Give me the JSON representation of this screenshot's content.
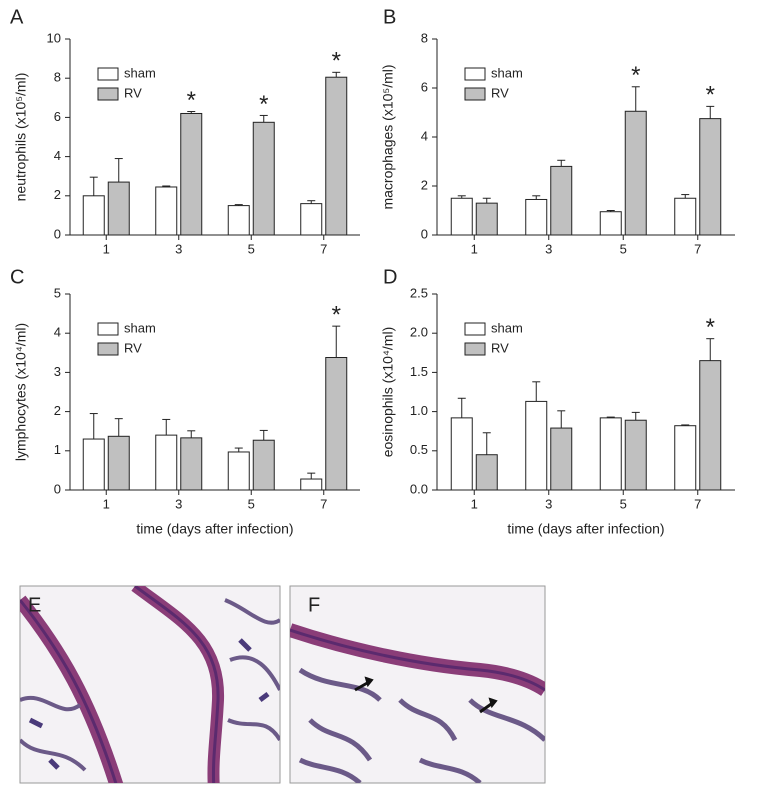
{
  "chart_data": [
    {
      "type": "bar",
      "panel": "A",
      "ylabel": "neutrophils (x10⁵/ml)",
      "categories": [
        "1",
        "3",
        "5",
        "7"
      ],
      "series": [
        {
          "name": "sham",
          "color": "#ffffff",
          "values": [
            2.0,
            2.45,
            1.5,
            1.6
          ],
          "errors": [
            0.95,
            0.05,
            0.05,
            0.15
          ]
        },
        {
          "name": "RV",
          "color": "#c0c0c0",
          "values": [
            2.7,
            6.2,
            5.75,
            8.05
          ],
          "errors": [
            1.2,
            0.1,
            0.35,
            0.25
          ],
          "significance": [
            null,
            "*",
            "*",
            "*"
          ]
        }
      ],
      "ylim": [
        0,
        10
      ],
      "yticks": [
        0,
        2,
        4,
        6,
        8,
        10
      ],
      "legend": "upper left"
    },
    {
      "type": "bar",
      "panel": "B",
      "ylabel": "macrophages (x10⁵/ml)",
      "categories": [
        "1",
        "3",
        "5",
        "7"
      ],
      "series": [
        {
          "name": "sham",
          "color": "#ffffff",
          "values": [
            1.5,
            1.45,
            0.95,
            1.5
          ],
          "errors": [
            0.1,
            0.15,
            0.05,
            0.15
          ]
        },
        {
          "name": "RV",
          "color": "#c0c0c0",
          "values": [
            1.3,
            2.8,
            5.05,
            4.75
          ],
          "errors": [
            0.2,
            0.25,
            1.0,
            0.5
          ],
          "significance": [
            null,
            null,
            "*",
            "*"
          ]
        }
      ],
      "ylim": [
        0,
        8
      ],
      "yticks": [
        0,
        2,
        4,
        6,
        8
      ],
      "legend": "upper left"
    },
    {
      "type": "bar",
      "panel": "C",
      "ylabel": "lymphocytes (x10⁴/ml)",
      "xlabel": "time (days after infection)",
      "categories": [
        "1",
        "3",
        "5",
        "7"
      ],
      "series": [
        {
          "name": "sham",
          "color": "#ffffff",
          "values": [
            1.3,
            1.4,
            0.97,
            0.28
          ],
          "errors": [
            0.65,
            0.4,
            0.1,
            0.15
          ]
        },
        {
          "name": "RV",
          "color": "#c0c0c0",
          "values": [
            1.37,
            1.33,
            1.27,
            3.38
          ],
          "errors": [
            0.45,
            0.18,
            0.25,
            0.8
          ],
          "significance": [
            null,
            null,
            null,
            "*"
          ]
        }
      ],
      "ylim": [
        0,
        5
      ],
      "yticks": [
        0,
        1,
        2,
        3,
        4,
        5
      ],
      "legend": "upper left"
    },
    {
      "type": "bar",
      "panel": "D",
      "ylabel": "eosinophils (x10⁴/ml)",
      "xlabel": "time (days after infection)",
      "categories": [
        "1",
        "3",
        "5",
        "7"
      ],
      "series": [
        {
          "name": "sham",
          "color": "#ffffff",
          "values": [
            0.92,
            1.13,
            0.92,
            0.82
          ],
          "errors": [
            0.25,
            0.25,
            0.01,
            0.01
          ]
        },
        {
          "name": "RV",
          "color": "#c0c0c0",
          "values": [
            0.45,
            0.79,
            0.89,
            1.65
          ],
          "errors": [
            0.28,
            0.22,
            0.1,
            0.28
          ],
          "significance": [
            null,
            null,
            null,
            "*"
          ]
        }
      ],
      "ylim": [
        0,
        2.5
      ],
      "yticks": [
        {
          "value": 0,
          "label": "0.0"
        },
        0.5,
        {
          "value": 1,
          "label": "1.0"
        },
        1.5,
        {
          "value": 2,
          "label": "2.0"
        },
        2.5
      ],
      "legend": "upper left"
    }
  ],
  "images": [
    {
      "label": "E"
    },
    {
      "label": "F"
    }
  ]
}
